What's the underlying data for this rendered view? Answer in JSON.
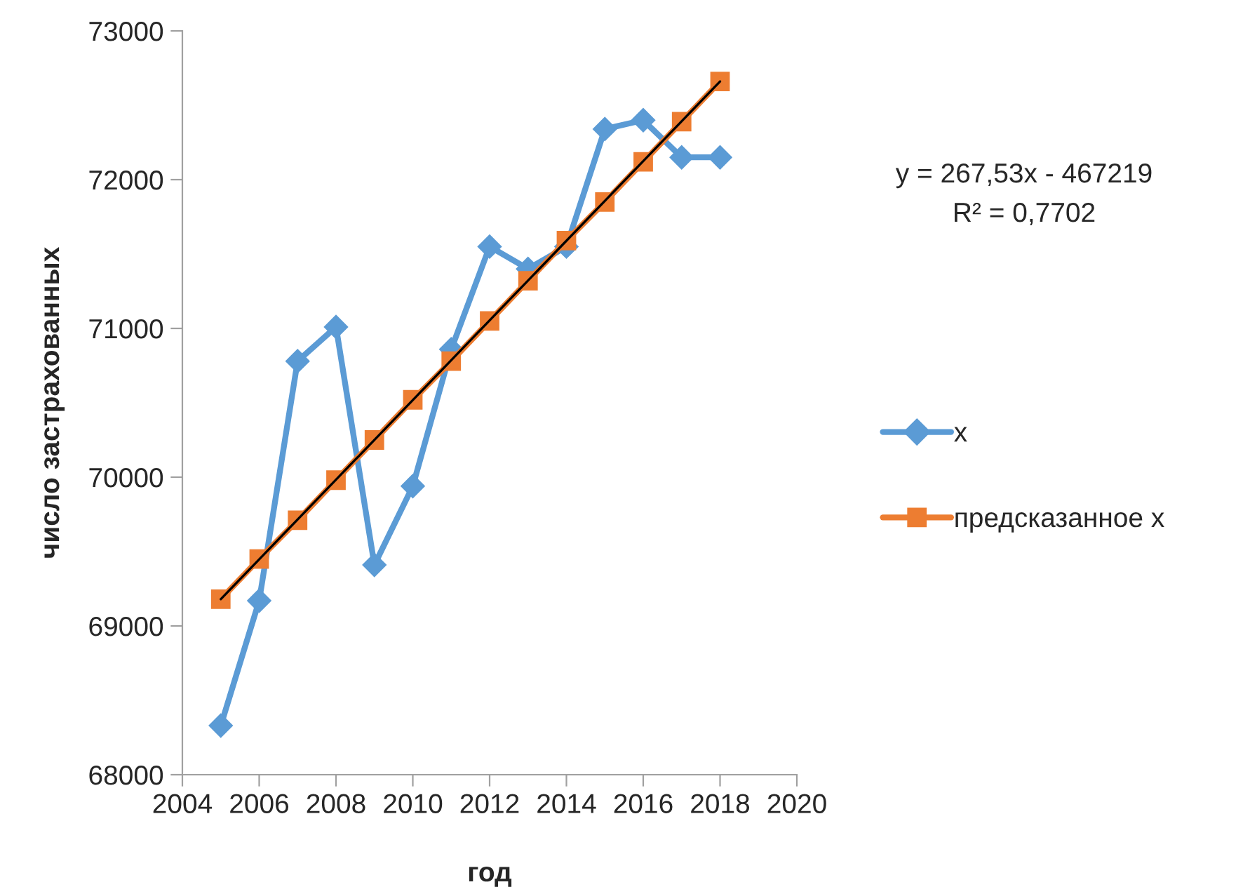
{
  "chart_data": {
    "type": "line",
    "xlabel": "год",
    "ylabel": "число застрахованных",
    "x": [
      2005,
      2006,
      2007,
      2008,
      2009,
      2010,
      2011,
      2012,
      2013,
      2014,
      2015,
      2016,
      2017,
      2018
    ],
    "series": [
      {
        "name": "x",
        "color": "#5b9bd5",
        "marker": "diamond",
        "values": [
          68330,
          69170,
          70780,
          71010,
          69410,
          69940,
          70860,
          71550,
          71400,
          71550,
          72340,
          72400,
          72150,
          72150
        ]
      },
      {
        "name": "предсказанное x",
        "color": "#ed7d31",
        "marker": "square",
        "values": [
          69180,
          69450,
          69710,
          69980,
          70250,
          70520,
          70780,
          71050,
          71320,
          71590,
          71850,
          72120,
          72390,
          72660
        ]
      },
      {
        "type": "line",
        "color": "#000000",
        "marker": "none",
        "x": [
          2005,
          2018
        ],
        "values": [
          69180,
          72660
        ]
      }
    ],
    "xlim": [
      2004,
      2020
    ],
    "xticks": [
      2004,
      2006,
      2008,
      2010,
      2012,
      2014,
      2016,
      2018,
      2020
    ],
    "ylim": [
      68000,
      73000
    ],
    "yticks": [
      68000,
      69000,
      70000,
      71000,
      72000,
      73000
    ],
    "grid": false,
    "legend": "right",
    "annotations": [
      "y = 267,53x - 467219",
      "R² = 0,7702"
    ]
  }
}
